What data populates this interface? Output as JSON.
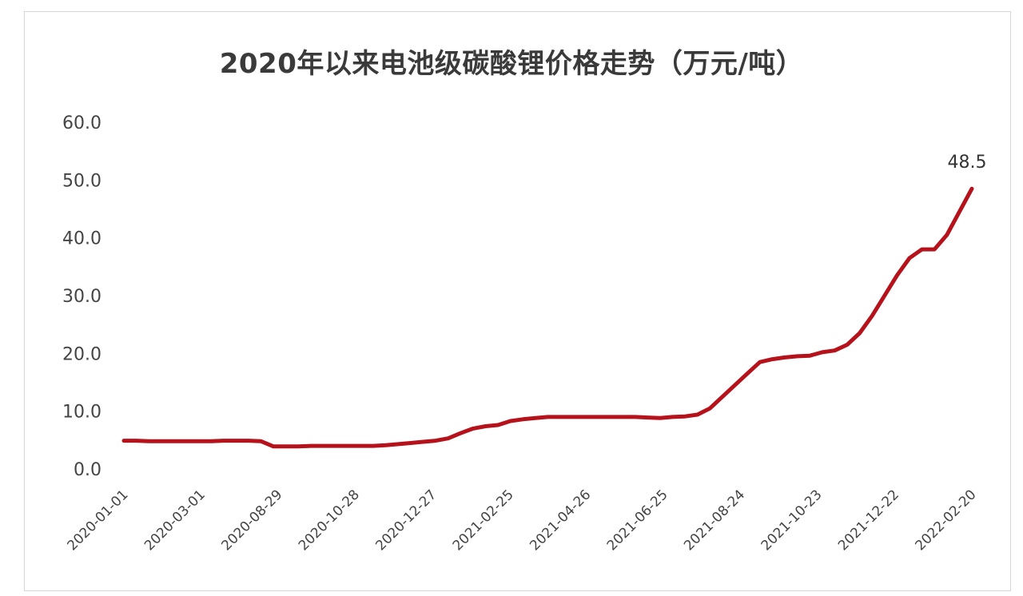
{
  "chart_data": {
    "type": "line",
    "title": "2020年以来电池级碳酸锂价格走势（万元/吨）",
    "xlabel": "",
    "ylabel": "",
    "ylim": [
      0,
      60
    ],
    "yticks": [
      "0.0",
      "10.0",
      "20.0",
      "30.0",
      "40.0",
      "50.0",
      "60.0"
    ],
    "xtick_labels": [
      "2020-01-01",
      "2020-03-01",
      "2020-08-29",
      "2020-10-28",
      "2020-12-27",
      "2021-02-25",
      "2021-04-26",
      "2021-06-25",
      "2021-08-24",
      "2021-10-23",
      "2021-12-22",
      "2022-02-20"
    ],
    "grid": false,
    "legend": "none",
    "line_color": "#b5121b",
    "series": [
      {
        "values": [
          4.9,
          4.9,
          4.8,
          4.8,
          4.8,
          4.8,
          4.8,
          4.8,
          4.9,
          4.9,
          4.9,
          4.8,
          3.9,
          3.9,
          3.9,
          4.0,
          4.0,
          4.0,
          4.0,
          4.0,
          4.0,
          4.1,
          4.3,
          4.5,
          4.7,
          4.9,
          5.3,
          6.2,
          7.0,
          7.4,
          7.6,
          8.3,
          8.6,
          8.8,
          9.0,
          9.0,
          9.0,
          9.0,
          9.0,
          9.0,
          9.0,
          9.0,
          8.9,
          8.8,
          9.0,
          9.1,
          9.4,
          10.5,
          12.5,
          14.5,
          16.5,
          18.5,
          19.0,
          19.3,
          19.5,
          19.6,
          20.2,
          20.5,
          21.5,
          23.5,
          26.5,
          30.0,
          33.5,
          36.5,
          38.0,
          38.0,
          40.5,
          44.5,
          48.5
        ]
      }
    ],
    "data_labels": [
      {
        "point": "last",
        "text": "48.5"
      }
    ]
  }
}
